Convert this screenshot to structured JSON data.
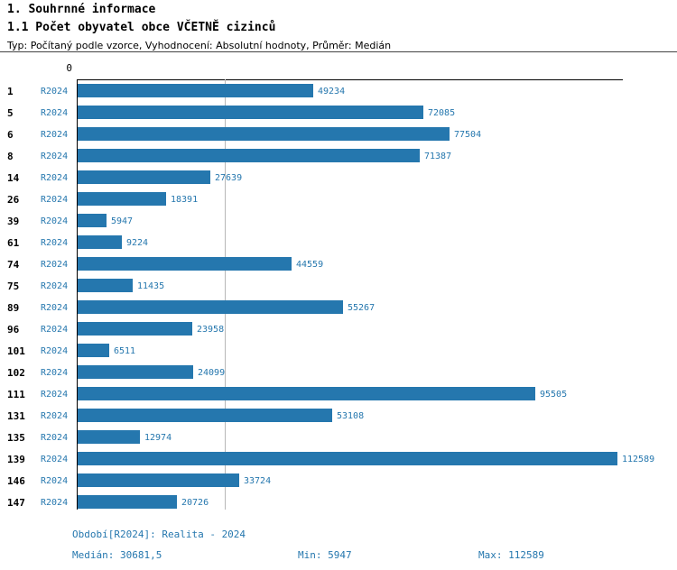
{
  "header": {
    "title": "1. Souhrnné informace",
    "subtitle": "1.1 Počet obyvatel obce VČETNĚ cizinců",
    "meta": "Typ: Počítaný podle vzorce, Vyhodnocení: Absolutní hodnoty, Průměr: Medián"
  },
  "chart_data": {
    "type": "bar",
    "orientation": "horizontal",
    "title": "1.1 Počet obyvatel obce VČETNĚ cizinců",
    "series_label": "R2024",
    "categories": [
      "1",
      "5",
      "6",
      "8",
      "14",
      "26",
      "39",
      "61",
      "74",
      "75",
      "89",
      "96",
      "101",
      "102",
      "111",
      "131",
      "135",
      "139",
      "146",
      "147"
    ],
    "values": [
      49234,
      72085,
      77504,
      71387,
      27639,
      18391,
      5947,
      9224,
      44559,
      11435,
      55267,
      23958,
      6511,
      24099,
      95505,
      53108,
      12974,
      112589,
      33724,
      20726
    ],
    "xlim": [
      0,
      112589
    ],
    "axis_zero_label": "0",
    "median_value": 30681.5,
    "grid": "median-line-only",
    "legend_position": "none",
    "bar_color": "#2577ae",
    "value_label_color": "#2577ae"
  },
  "footer": {
    "period": "Období[R2024]: Realita - 2024",
    "median": "Medián: 30681,5",
    "min": "Min: 5947",
    "max": "Max: 112589"
  }
}
